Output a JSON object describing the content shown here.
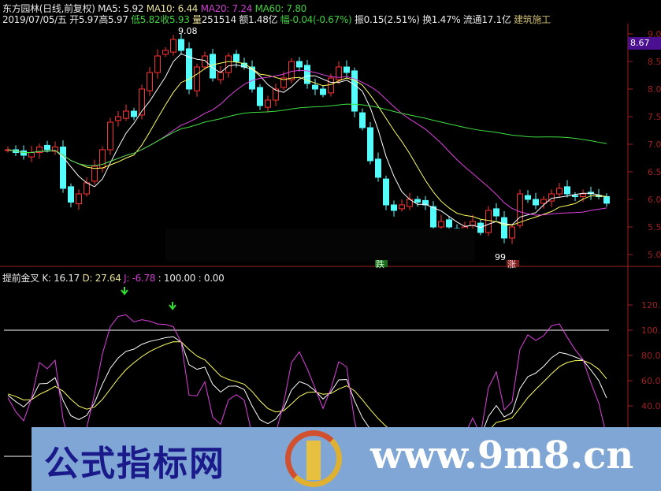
{
  "header": {
    "name": "东方园林(日线,前复权)",
    "ma5": "MA5: 5.92",
    "ma10": "MA10: 6.44",
    "ma20": "MA20: 7.24",
    "ma60": "MA60: 7.80",
    "date": "2019/07/05/五",
    "open": "开5.97",
    "high": "高5.97",
    "low": "低5.82",
    "close": "收5.93",
    "vol_label": "量",
    "vol": "251514",
    "amount": "额1.48亿",
    "chg": "幅-0.04(-0.67%)",
    "amp": "振0.15(2.51%)",
    "turn": "换1.47%",
    "float": "流通17.1亿",
    "sector": "建筑施工"
  },
  "indicator": {
    "name": "提前金叉",
    "k": "K: 16.17",
    "d": "D: 27.64",
    "j": "J: -6.78",
    "l1": ": 100.00",
    "l2": ": 0.00"
  },
  "last_price": "8.67",
  "annotations": {
    "high": "9.08",
    "low": "99",
    "down": "跌",
    "up": "涨"
  },
  "banner": {
    "site_name": "公式指标网",
    "url": "www.9m8.cn"
  },
  "colors": {
    "up": "#ff3232",
    "down": "#54fcfc",
    "ma5": "#ffffff",
    "ma10": "#ffff60",
    "ma20": "#e040e0",
    "ma60": "#40e040",
    "k": "#ffffff",
    "d": "#ffff60",
    "j": "#e040e0",
    "axis": "#a02020"
  },
  "chart_data": [
    {
      "type": "candlestick",
      "price_axis": {
        "ticks": [
          "9.0",
          "8.5",
          "8.0",
          "7.5",
          "7.0",
          "6.5",
          "6.0",
          "5.5",
          "5.0"
        ],
        "range": [
          4.7,
          9.2
        ]
      },
      "closes": [
        6.9,
        6.85,
        6.8,
        6.85,
        6.95,
        6.9,
        6.95,
        6.2,
        5.95,
        6.1,
        6.3,
        6.6,
        6.9,
        7.4,
        7.5,
        7.6,
        7.5,
        8.0,
        8.3,
        8.6,
        8.7,
        8.9,
        8.7,
        8.0,
        8.4,
        8.6,
        8.2,
        8.3,
        8.6,
        8.5,
        8.4,
        8.0,
        7.7,
        7.8,
        8.0,
        8.2,
        8.5,
        8.4,
        8.1,
        8.0,
        7.9,
        8.2,
        8.4,
        8.3,
        7.6,
        7.3,
        6.7,
        6.4,
        5.9,
        5.8,
        5.9,
        6.0,
        5.95,
        5.9,
        5.5,
        5.6,
        5.5,
        5.45,
        5.5,
        5.6,
        5.4,
        5.8,
        5.7,
        5.3,
        5.5,
        6.1,
        6.0,
        5.9,
        6.0,
        6.1,
        6.2,
        6.1,
        6.05,
        6.1,
        6.1,
        6.05,
        5.93
      ],
      "series": [
        "MA5",
        "MA10",
        "MA20",
        "MA60"
      ]
    },
    {
      "type": "line",
      "name": "提前金叉",
      "y_axis": {
        "ticks": [
          "120.",
          "100.",
          "80.0",
          "60.0",
          "40.0"
        ],
        "range": [
          0,
          135
        ]
      },
      "series": [
        "K",
        "D",
        "J"
      ],
      "reference_lines": [
        100,
        0
      ]
    }
  ]
}
